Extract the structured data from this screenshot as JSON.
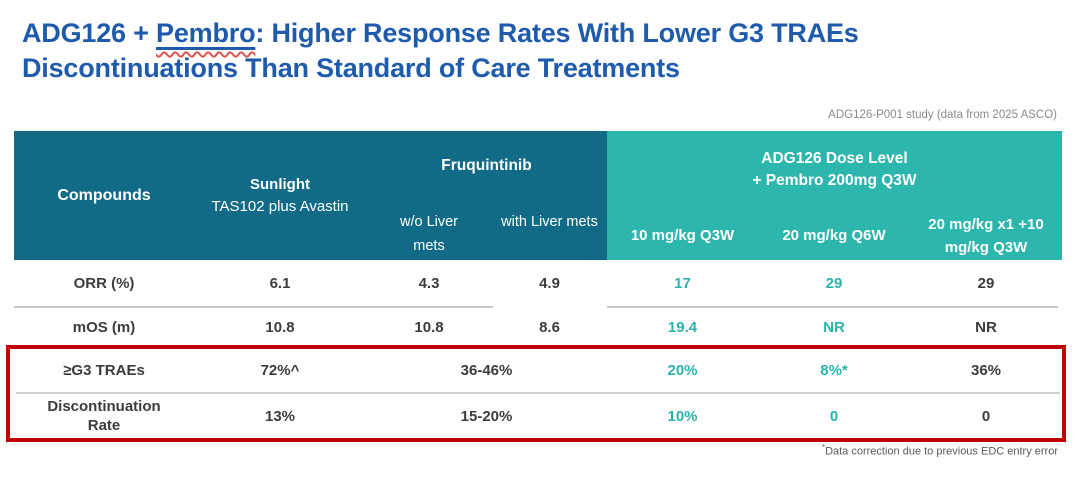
{
  "title": {
    "prefix": "ADG126 + ",
    "underlined_word": "Pembro",
    "rest_line1": ": Higher Response Rates With Lower G3 TRAEs",
    "line2": "Discontinuations Than Standard of Care Treatments"
  },
  "study_note": "ADG126-P001 study (data from 2025 ASCO)",
  "footnote": {
    "marker": "*",
    "text": "Data correction due to previous EDC entry error"
  },
  "colors": {
    "title_blue": "#1F5BAD",
    "header_dark_teal": "#126B86",
    "header_light_teal": "#2CB6AD",
    "accent_teal": "#2AB3AA",
    "body_text": "#3C3C3C",
    "highlight_red": "#C00000",
    "note_gray": "#8A8A8A"
  },
  "table": {
    "corner_label": "Compounds",
    "sunlight": {
      "title": "Sunlight",
      "subtitle": "TAS102 plus Avastin"
    },
    "fruquintinib": {
      "title": "Fruquintinib",
      "wo_liver_lines": [
        "w/o Liver",
        "mets"
      ],
      "with_liver": "with Liver mets"
    },
    "adg126": {
      "title_lines": [
        "ADG126 Dose Level",
        "+ Pembro 200mg Q3W"
      ],
      "doses": [
        "10 mg/kg Q3W",
        "20 mg/kg Q6W"
      ],
      "dose3_lines": [
        "20 mg/kg x1 +10",
        "mg/kg Q3W"
      ]
    },
    "rows": [
      {
        "label": "ORR (%)",
        "sunlight": "6.1",
        "fruq_wo_liver": "4.3",
        "fruq_with_liver": "4.9",
        "adg_10mg": "17",
        "adg_20mg_q6w": "29",
        "adg_20mg_x1": "29"
      },
      {
        "label": "mOS (m)",
        "sunlight": "10.8",
        "fruq_wo_liver": "10.8",
        "fruq_with_liver": "8.6",
        "adg_10mg": "19.4",
        "adg_20mg_q6w": "NR",
        "adg_20mg_x1": "NR"
      },
      {
        "label": "≥G3 TRAEs",
        "sunlight": "72%^",
        "fruquintinib_merged": "36-46%",
        "adg_10mg": "20%",
        "adg_20mg_q6w": "8%*",
        "adg_20mg_x1": "36%"
      },
      {
        "label_lines": [
          "Discontinuation",
          "Rate"
        ],
        "sunlight": "13%",
        "fruquintinib_merged": "15-20%",
        "adg_10mg": "10%",
        "adg_20mg_q6w": "0",
        "adg_20mg_x1": "0"
      }
    ]
  }
}
